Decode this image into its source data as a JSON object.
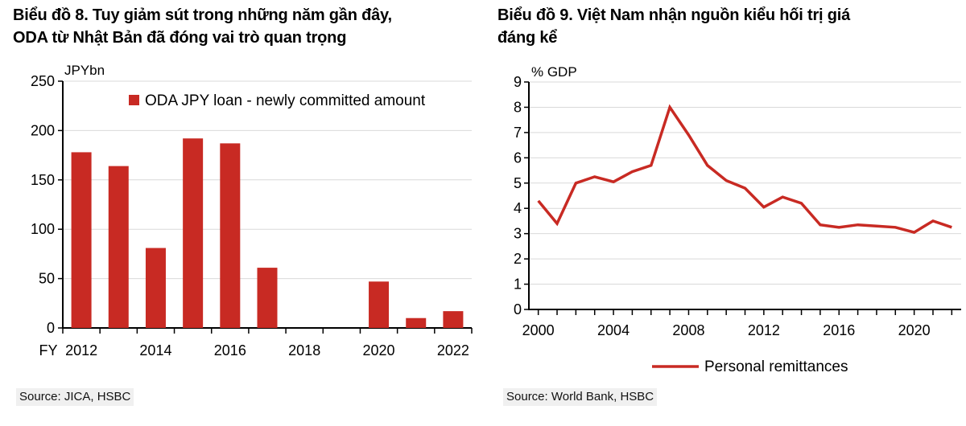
{
  "colors": {
    "accent_red": "#c82a23",
    "gridline": "#d9d9d9",
    "axis": "#000000",
    "text": "#000000",
    "source_bg": "#f0f0f0"
  },
  "chart_data": [
    {
      "type": "bar",
      "title_lines": [
        "Biểu đồ 8. Tuy giảm sút trong những năm gần đây,",
        "ODA từ Nhật Bản đã đóng vai trò quan trọng"
      ],
      "unit_label": "JPYbn",
      "x_axis_prefix": "FY",
      "legend_label": "ODA JPY loan - newly committed amount",
      "legend_position": "top-center",
      "categories": [
        "2012",
        "2013",
        "2014",
        "2015",
        "2016",
        "2017",
        "2018",
        "2019",
        "2020",
        "2021",
        "2022"
      ],
      "values": [
        178,
        164,
        81,
        192,
        187,
        61,
        0,
        0,
        47,
        10,
        17
      ],
      "ylim": [
        0,
        250
      ],
      "ytick_step": 50,
      "ytick_labels": [
        "0",
        "50",
        "100",
        "150",
        "200",
        "250"
      ],
      "xtick_labels": [
        "2012",
        "2014",
        "2016",
        "2018",
        "2020",
        "2022"
      ],
      "grid": true,
      "color": "#c82a23",
      "source": "Source: JICA, HSBC"
    },
    {
      "type": "line",
      "title_lines": [
        "Biểu đồ 9. Việt Nam nhận nguồn kiểu hối trị giá",
        "đáng kể"
      ],
      "unit_label": "% GDP",
      "legend_label": "Personal remittances",
      "legend_position": "bottom-center",
      "x": [
        "2000",
        "2001",
        "2002",
        "2003",
        "2004",
        "2005",
        "2006",
        "2007",
        "2008",
        "2009",
        "2010",
        "2011",
        "2012",
        "2013",
        "2014",
        "2015",
        "2016",
        "2017",
        "2018",
        "2019",
        "2020",
        "2021",
        "2022"
      ],
      "values": [
        4.3,
        3.4,
        5.0,
        5.25,
        5.05,
        5.45,
        5.7,
        8.0,
        6.9,
        5.7,
        5.1,
        4.8,
        4.05,
        4.45,
        4.2,
        3.35,
        3.25,
        3.35,
        3.3,
        3.25,
        3.05,
        3.5,
        3.25
      ],
      "ylim": [
        0,
        9
      ],
      "ytick_step": 1,
      "ytick_labels": [
        "0",
        "1",
        "2",
        "3",
        "4",
        "5",
        "6",
        "7",
        "8",
        "9"
      ],
      "xtick_labels": [
        "2000",
        "2004",
        "2008",
        "2012",
        "2016",
        "2020"
      ],
      "grid": true,
      "color": "#c82a23",
      "source": "Source: World Bank, HSBC"
    }
  ]
}
